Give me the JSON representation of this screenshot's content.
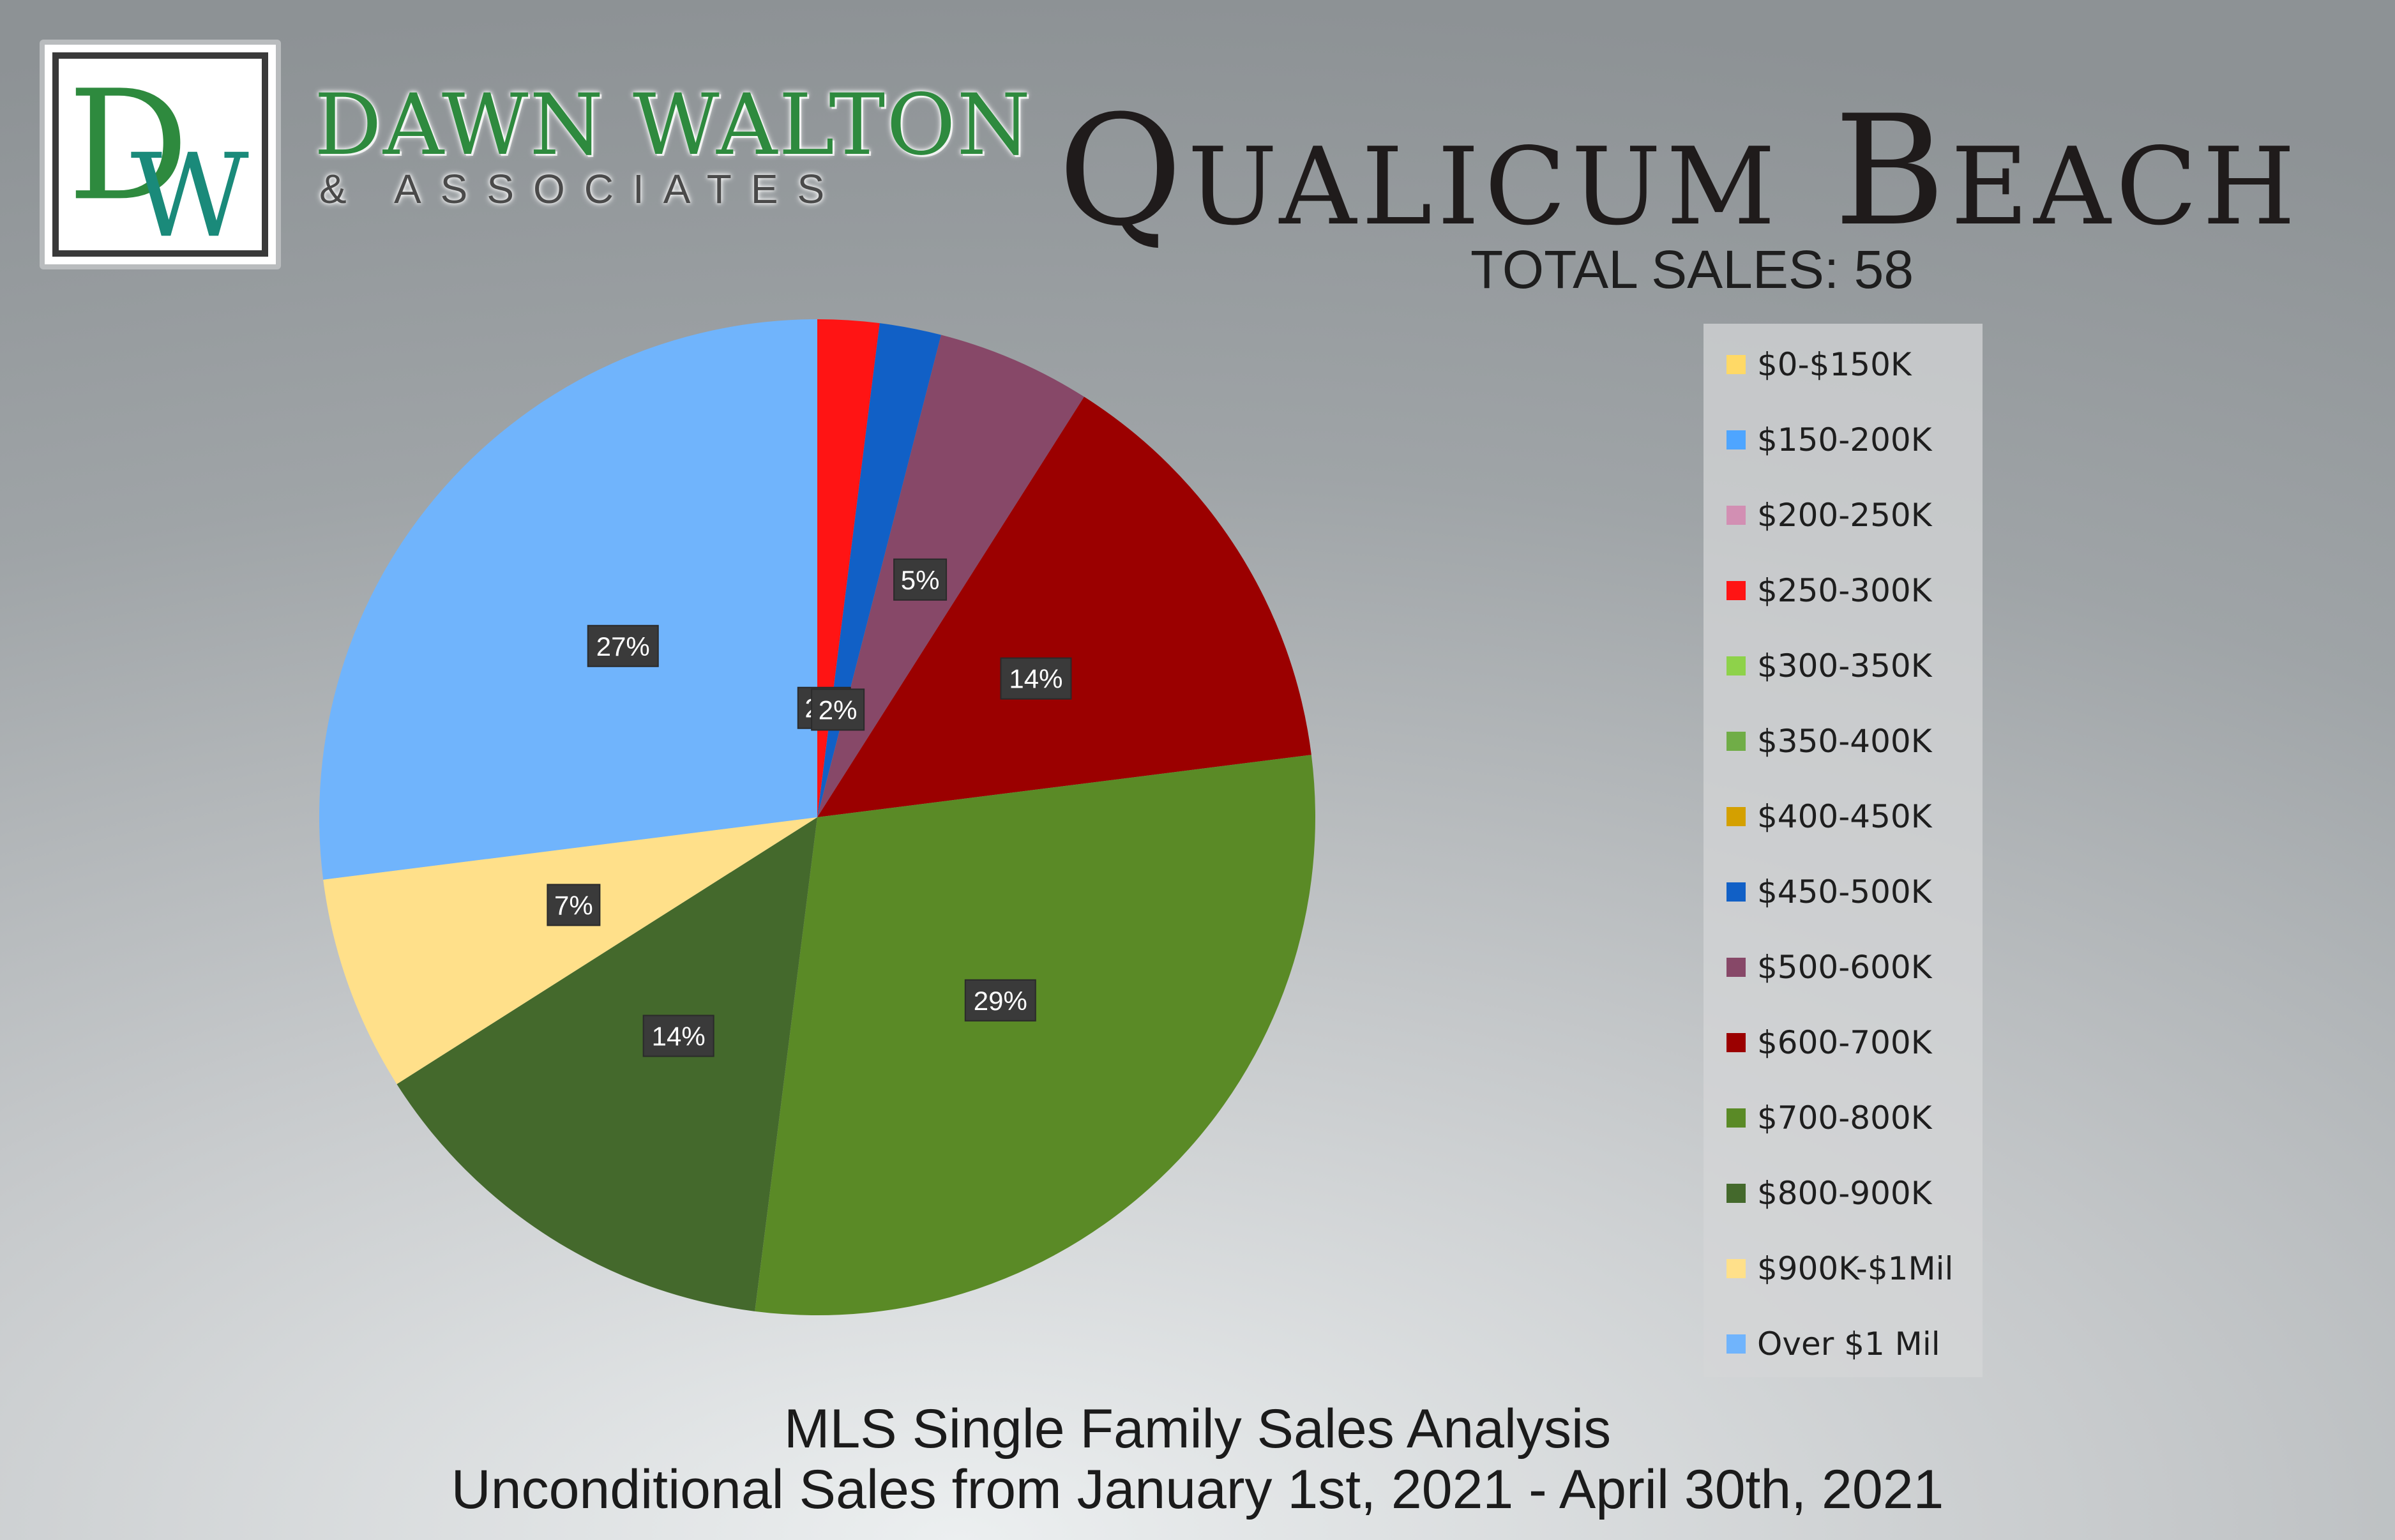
{
  "brand": {
    "monogram": "DW",
    "name": "DAWN WALTON",
    "subtitle": "& ASSOCIATES",
    "name_color": "#2e8a3e",
    "monogram_d_color": "#2e8a3e",
    "monogram_w_color": "#1a8a7a"
  },
  "header": {
    "city": "Qualicum Beach",
    "total_sales": "TOTAL SALES: 58"
  },
  "chart_data": {
    "type": "pie",
    "title": "Qualicum Beach",
    "slices": [
      {
        "label": "$0-$150K",
        "value": 0,
        "color": "#ffd966",
        "data_label": ""
      },
      {
        "label": "$150-200K",
        "value": 0,
        "color": "#4ea5ff",
        "data_label": ""
      },
      {
        "label": "$200-250K",
        "value": 0,
        "color": "#d28fb3",
        "data_label": ""
      },
      {
        "label": "$250-300K",
        "value": 2,
        "color": "#ff1414",
        "data_label": "2%"
      },
      {
        "label": "$300-350K",
        "value": 0,
        "color": "#8ed24a",
        "data_label": ""
      },
      {
        "label": "$350-400K",
        "value": 0,
        "color": "#70ad47",
        "data_label": ""
      },
      {
        "label": "$400-450K",
        "value": 0,
        "color": "#d4a000",
        "data_label": ""
      },
      {
        "label": "$450-500K",
        "value": 2,
        "color": "#1160c6",
        "data_label": "2%"
      },
      {
        "label": "$500-600K",
        "value": 5,
        "color": "#874868",
        "data_label": "5%"
      },
      {
        "label": "$600-700K",
        "value": 14,
        "color": "#9b0000",
        "data_label": "14%"
      },
      {
        "label": "$700-800K",
        "value": 29,
        "color": "#5a8a26",
        "data_label": "29%"
      },
      {
        "label": "$800-900K",
        "value": 14,
        "color": "#44692c",
        "data_label": "14%"
      },
      {
        "label": "$900K-$1Mil",
        "value": 7,
        "color": "#ffe08a",
        "data_label": "7%"
      },
      {
        "label": "Over $1 Mil",
        "value": 27,
        "color": "#70b4fc",
        "data_label": "27%"
      }
    ],
    "legend_placement": "right"
  },
  "footer": {
    "line1": "MLS Single Family Sales Analysis",
    "line2": "Unconditional Sales from January 1st, 2021 - April 30th, 2021"
  }
}
